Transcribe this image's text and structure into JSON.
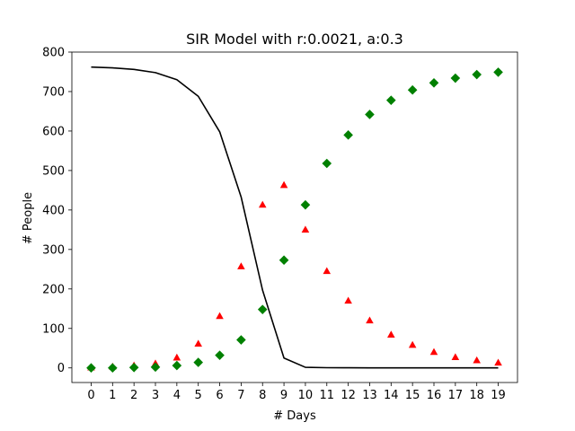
{
  "chart_data": {
    "type": "line",
    "title": "SIR Model with r:0.0021, a:0.3",
    "xlabel": "# Days",
    "ylabel": "# People",
    "x": [
      0,
      1,
      2,
      3,
      4,
      5,
      6,
      7,
      8,
      9,
      10,
      11,
      12,
      13,
      14,
      15,
      16,
      17,
      18,
      19
    ],
    "x_ticks": [
      "0",
      "1",
      "2",
      "3",
      "4",
      "5",
      "6",
      "7",
      "8",
      "9",
      "10",
      "11",
      "12",
      "13",
      "14",
      "15",
      "16",
      "17",
      "18",
      "19"
    ],
    "y_ticks": [
      "0",
      "100",
      "200",
      "300",
      "400",
      "500",
      "600",
      "700",
      "800"
    ],
    "xlim": [
      -0.9,
      19.9
    ],
    "ylim": [
      -37,
      800
    ],
    "grid": false,
    "legend": "none",
    "series": [
      {
        "style": "line",
        "color": "#000000",
        "values": [
          762,
          760,
          756,
          748,
          730,
          688,
          598,
          433,
          197,
          25,
          1.5,
          0.5,
          0.3,
          0.2,
          0.2,
          0.2,
          0.2,
          0.2,
          0.2,
          0.2
        ]
      },
      {
        "style": "triangle-markers",
        "color": "#ff0000",
        "values": [
          1,
          3,
          6,
          11,
          26,
          61,
          131,
          257,
          413,
          463,
          350,
          245,
          170,
          120,
          84,
          58,
          40,
          27,
          19,
          13
        ]
      },
      {
        "style": "diamond-markers",
        "color": "#008000",
        "values": [
          0,
          0,
          1,
          2,
          6,
          14,
          32,
          71,
          148,
          273,
          413,
          518,
          590,
          642,
          678,
          704,
          722,
          734,
          743,
          749
        ]
      }
    ]
  }
}
